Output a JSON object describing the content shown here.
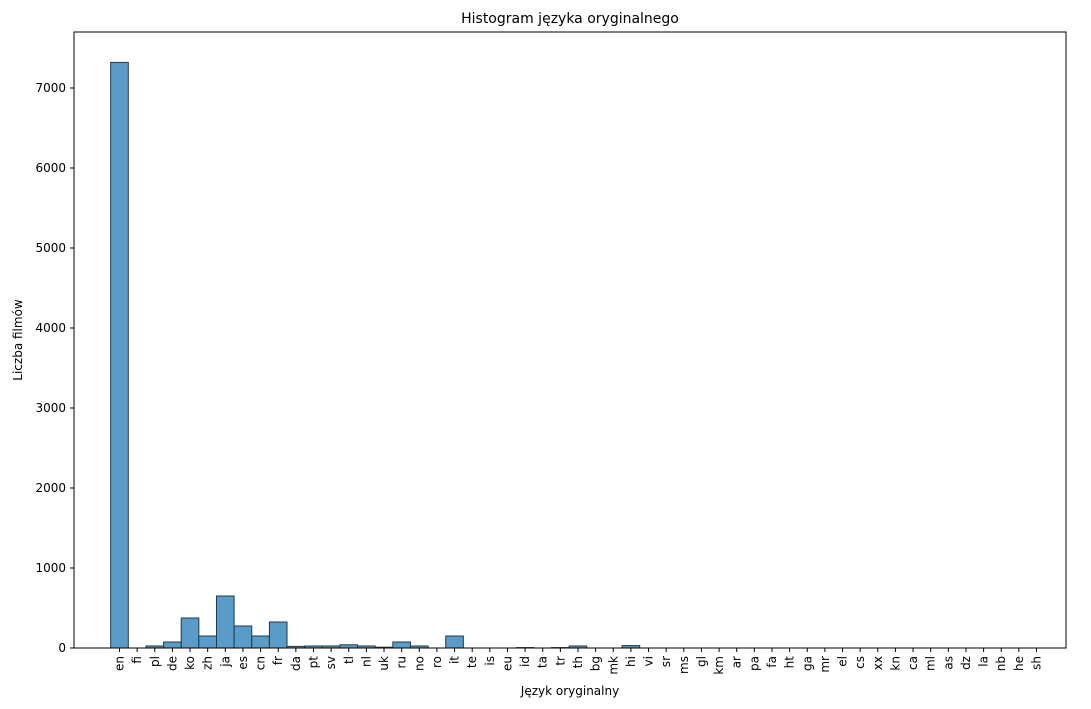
{
  "chart_data": {
    "type": "bar",
    "title": "Histogram języka oryginalnego",
    "xlabel": "Język oryginalny",
    "ylabel": "Liczba filmów",
    "categories": [
      "en",
      "fi",
      "pl",
      "de",
      "ko",
      "zh",
      "ja",
      "es",
      "cn",
      "fr",
      "da",
      "pt",
      "sv",
      "tl",
      "nl",
      "uk",
      "ru",
      "no",
      "ro",
      "it",
      "te",
      "is",
      "eu",
      "id",
      "ta",
      "tr",
      "th",
      "bg",
      "mk",
      "hi",
      "vi",
      "sr",
      "ms",
      "gl",
      "km",
      "ar",
      "pa",
      "fa",
      "ht",
      "ga",
      "mr",
      "el",
      "cs",
      "xx",
      "kn",
      "ca",
      "ml",
      "as",
      "dz",
      "la",
      "nb",
      "he",
      "sh"
    ],
    "values": [
      7320,
      0,
      25,
      75,
      375,
      150,
      650,
      275,
      150,
      325,
      20,
      25,
      25,
      40,
      25,
      10,
      75,
      25,
      0,
      150,
      0,
      0,
      0,
      5,
      0,
      5,
      25,
      0,
      0,
      30,
      0,
      0,
      0,
      0,
      0,
      0,
      0,
      0,
      0,
      0,
      0,
      0,
      0,
      0,
      0,
      0,
      0,
      0,
      0,
      0,
      0,
      0,
      0
    ],
    "ylim": [
      0,
      7700
    ],
    "yticks": [
      0,
      1000,
      2000,
      3000,
      4000,
      5000,
      6000,
      7000
    ],
    "bar_color": "#5b9bc8",
    "bar_edge_color": "#1f3a4d",
    "grid": false,
    "legend": "none"
  }
}
